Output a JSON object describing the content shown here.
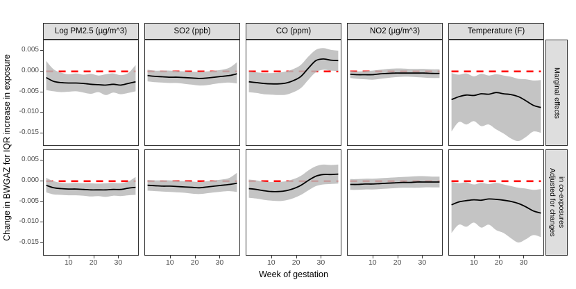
{
  "figure": {
    "background": "#FFFFFF"
  },
  "chart_data": {
    "type": "line",
    "title": "",
    "xlabel": "Week of gestation",
    "ylabel": "Change in BWGAZ for IQR increase in exposure",
    "columns": [
      "Log PM2.5 (µg/m^3)",
      "SO2 (ppb)",
      "CO (ppm)",
      "NO2 (µg/m^3)",
      "Temperature (F)"
    ],
    "rows": [
      {
        "id": "marginal",
        "label": "Marginal effects"
      },
      {
        "id": "adjusted",
        "label": "Adjusted for changes\nin co-exposures"
      }
    ],
    "xlim": [
      0,
      38
    ],
    "ylim": [
      -0.0178,
      0.0075
    ],
    "x_ticks": [
      {
        "value": 10,
        "label": "10"
      },
      {
        "value": 20,
        "label": "20"
      },
      {
        "value": 30,
        "label": "30"
      }
    ],
    "y_ticks": [
      {
        "value": 0.005,
        "label": "0.005"
      },
      {
        "value": 0.0,
        "label": "0.000"
      },
      {
        "value": -0.005,
        "label": "-0.005"
      },
      {
        "value": -0.01,
        "label": "-0.010"
      },
      {
        "value": -0.015,
        "label": "-0.015"
      }
    ],
    "reference_line": {
      "y": 0,
      "color": "#FF0000",
      "style": "dashed"
    },
    "styles": {
      "ribbon_color": "rgba(186,186,186,0.85)",
      "line_color": "#000000",
      "axis_text_color": "#4D4D4D",
      "panel_border_color": "#333333",
      "strip_bg": "#DEDEDE"
    },
    "weeks": [
      1,
      4,
      7,
      10,
      13,
      16,
      19,
      22,
      25,
      28,
      31,
      34,
      37
    ],
    "panels": [
      {
        "facet_row": "marginal",
        "facet_col": "log-pm25",
        "estimate": [
          -0.0015,
          -0.0024,
          -0.0027,
          -0.0028,
          -0.0028,
          -0.0029,
          -0.0031,
          -0.0032,
          -0.0033,
          -0.0031,
          -0.0033,
          -0.0029,
          -0.0025
        ],
        "upper": [
          0.0025,
          0.0005,
          -0.0003,
          -0.0007,
          -0.0005,
          -0.0008,
          -0.0006,
          -0.001,
          -0.0007,
          -0.0005,
          -0.0009,
          -0.0004,
          0.0015
        ],
        "lower": [
          -0.0045,
          -0.0048,
          -0.005,
          -0.0049,
          -0.0048,
          -0.0051,
          -0.0054,
          -0.005,
          -0.0057,
          -0.0051,
          -0.0055,
          -0.0052,
          -0.0048
        ]
      },
      {
        "facet_row": "marginal",
        "facet_col": "so2",
        "estimate": [
          -0.001,
          -0.0012,
          -0.0013,
          -0.0014,
          -0.0014,
          -0.0015,
          -0.0016,
          -0.0017,
          -0.0016,
          -0.0014,
          -0.0012,
          -0.001,
          -0.0006
        ],
        "upper": [
          0.0004,
          0.0002,
          0.0002,
          0.0002,
          0.0001,
          0,
          -0.0001,
          -0.0001,
          0,
          0.0002,
          0.0004,
          0.0009,
          0.0022
        ],
        "lower": [
          -0.0024,
          -0.0026,
          -0.0027,
          -0.0028,
          -0.0028,
          -0.003,
          -0.0032,
          -0.0034,
          -0.0033,
          -0.003,
          -0.0028,
          -0.0027,
          -0.0029
        ]
      },
      {
        "facet_row": "marginal",
        "facet_col": "co",
        "estimate": [
          -0.0025,
          -0.0027,
          -0.0029,
          -0.003,
          -0.003,
          -0.0028,
          -0.0022,
          -0.0012,
          0.0008,
          0.0026,
          0.003,
          0.0027,
          0.0026
        ],
        "upper": [
          0,
          -0.0002,
          -0.0004,
          -0.0004,
          -0.0003,
          0,
          0.0006,
          0.0016,
          0.0036,
          0.0052,
          0.0056,
          0.0052,
          0.005
        ],
        "lower": [
          -0.005,
          -0.0052,
          -0.0055,
          -0.0056,
          -0.0057,
          -0.0056,
          -0.005,
          -0.004,
          -0.002,
          -0.0002,
          0.0004,
          0.0002,
          0.0001
        ]
      },
      {
        "facet_row": "marginal",
        "facet_col": "no2",
        "estimate": [
          -0.0007,
          -0.0008,
          -0.0008,
          -0.0008,
          -0.0006,
          -0.0005,
          -0.0004,
          -0.0004,
          -0.0004,
          -0.0004,
          -0.0004,
          -0.0005,
          -0.0005
        ],
        "upper": [
          0.0001,
          0,
          0.0001,
          0.0002,
          0.0004,
          0.0006,
          0.0007,
          0.0007,
          0.0006,
          0.0006,
          0.0006,
          0.0005,
          0.0005
        ],
        "lower": [
          -0.0016,
          -0.0018,
          -0.0019,
          -0.002,
          -0.0018,
          -0.0016,
          -0.0014,
          -0.0013,
          -0.0013,
          -0.0014,
          -0.0015,
          -0.0016,
          -0.0016
        ]
      },
      {
        "facet_row": "marginal",
        "facet_col": "temperature",
        "estimate": [
          -0.0068,
          -0.0061,
          -0.0057,
          -0.0058,
          -0.0054,
          -0.0055,
          -0.0051,
          -0.0054,
          -0.0056,
          -0.0061,
          -0.0071,
          -0.0082,
          -0.0087
        ],
        "upper": [
          -0.0004,
          -0.0008,
          -0.0005,
          -0.0012,
          -0.0006,
          -0.001,
          -0.0007,
          -0.001,
          -0.0013,
          -0.0018,
          -0.0019,
          -0.0022,
          -0.0021
        ],
        "lower": [
          -0.0145,
          -0.0122,
          -0.0128,
          -0.012,
          -0.0132,
          -0.0128,
          -0.014,
          -0.015,
          -0.0162,
          -0.0168,
          -0.0158,
          -0.0145,
          -0.0148
        ]
      },
      {
        "facet_row": "adjusted",
        "facet_col": "log-pm25",
        "estimate": [
          -0.001,
          -0.0016,
          -0.0018,
          -0.0019,
          -0.0019,
          -0.002,
          -0.0021,
          -0.0021,
          -0.0021,
          -0.002,
          -0.002,
          -0.0017,
          -0.0015
        ],
        "upper": [
          0.0008,
          0,
          -0.0004,
          -0.0005,
          -0.0004,
          -0.0005,
          -0.0005,
          -0.0006,
          -0.0005,
          -0.0004,
          -0.0005,
          -0.0001,
          0.001
        ],
        "lower": [
          -0.0027,
          -0.0032,
          -0.0033,
          -0.0034,
          -0.0034,
          -0.0035,
          -0.0037,
          -0.0036,
          -0.0038,
          -0.0035,
          -0.0036,
          -0.0034,
          -0.0033
        ]
      },
      {
        "facet_row": "adjusted",
        "facet_col": "so2",
        "estimate": [
          -0.001,
          -0.0011,
          -0.0012,
          -0.0012,
          -0.0013,
          -0.0014,
          -0.0015,
          -0.0016,
          -0.0014,
          -0.0012,
          -0.001,
          -0.0008,
          -0.0005
        ],
        "upper": [
          0.0003,
          0.0002,
          0.0002,
          0.0002,
          0.0001,
          0,
          -0.0001,
          -0.0002,
          0,
          0.0002,
          0.0004,
          0.0008,
          0.002
        ],
        "lower": [
          -0.0023,
          -0.0024,
          -0.0025,
          -0.0026,
          -0.0027,
          -0.0028,
          -0.003,
          -0.0031,
          -0.0029,
          -0.0027,
          -0.0025,
          -0.0024,
          -0.0026
        ]
      },
      {
        "facet_row": "adjusted",
        "facet_col": "co",
        "estimate": [
          -0.0018,
          -0.002,
          -0.0023,
          -0.0025,
          -0.0025,
          -0.0023,
          -0.0018,
          -0.001,
          0.0002,
          0.0012,
          0.0016,
          0.0016,
          0.0017
        ],
        "upper": [
          0.0004,
          0.0002,
          -0.0001,
          -0.0002,
          -0.0002,
          0,
          0.0005,
          0.0013,
          0.0026,
          0.0036,
          0.004,
          0.0039,
          0.004
        ],
        "lower": [
          -0.004,
          -0.0042,
          -0.0045,
          -0.0047,
          -0.0048,
          -0.0046,
          -0.0041,
          -0.0033,
          -0.0022,
          -0.0012,
          -0.0008,
          -0.0007,
          -0.0006
        ]
      },
      {
        "facet_row": "adjusted",
        "facet_col": "no2",
        "estimate": [
          -0.0008,
          -0.0008,
          -0.0007,
          -0.0007,
          -0.0006,
          -0.0005,
          -0.0004,
          -0.0003,
          -0.0003,
          -0.0002,
          -0.0002,
          -0.0002,
          -0.0002
        ],
        "upper": [
          0.0005,
          0.0005,
          0.0006,
          0.0006,
          0.0007,
          0.0008,
          0.0009,
          0.001,
          0.0011,
          0.0012,
          0.0012,
          0.0011,
          0.0011
        ],
        "lower": [
          -0.0021,
          -0.0021,
          -0.002,
          -0.002,
          -0.0019,
          -0.0018,
          -0.0017,
          -0.0016,
          -0.0016,
          -0.0016,
          -0.0015,
          -0.0015,
          -0.0015
        ]
      },
      {
        "facet_row": "adjusted",
        "facet_col": "temperature",
        "estimate": [
          -0.0057,
          -0.005,
          -0.0047,
          -0.0045,
          -0.0046,
          -0.0043,
          -0.0044,
          -0.0046,
          -0.0049,
          -0.0054,
          -0.0062,
          -0.0072,
          -0.0077
        ],
        "upper": [
          -0.0002,
          -0.0005,
          -0.0003,
          -0.0008,
          -0.0004,
          -0.0007,
          -0.0004,
          -0.0008,
          -0.0012,
          -0.0016,
          -0.0018,
          -0.0021,
          -0.0019
        ],
        "lower": [
          -0.0125,
          -0.0105,
          -0.011,
          -0.01,
          -0.0112,
          -0.0105,
          -0.0118,
          -0.0125,
          -0.0138,
          -0.0148,
          -0.014,
          -0.013,
          -0.0135
        ]
      }
    ]
  }
}
